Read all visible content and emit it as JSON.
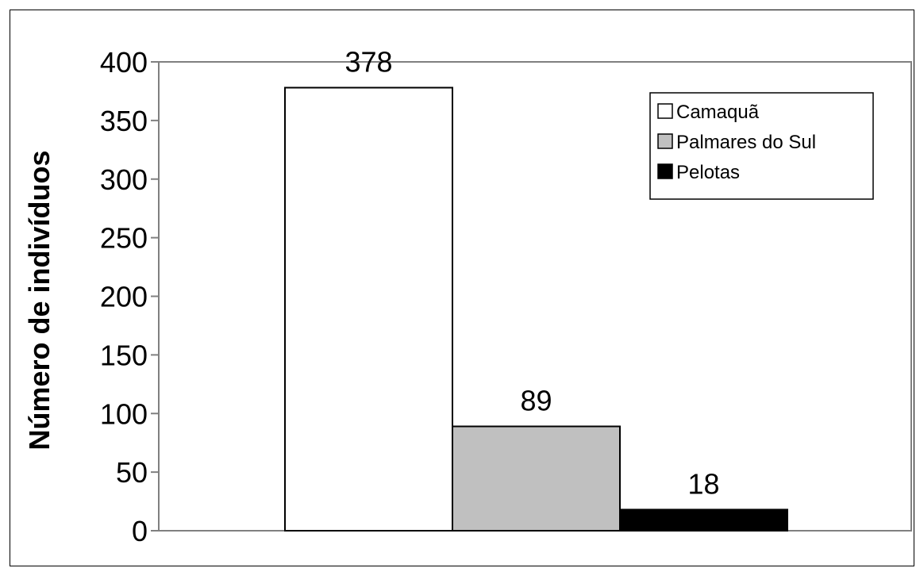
{
  "chart_data": {
    "type": "bar",
    "title": "",
    "xlabel": "",
    "ylabel": "Número de indivíduos",
    "ylim": [
      0,
      400
    ],
    "yticks": [
      0,
      50,
      100,
      150,
      200,
      250,
      300,
      350,
      400
    ],
    "grid": false,
    "legend_position": "top-right",
    "series": [
      {
        "name": "Camaquã",
        "value": 378,
        "color": "#ffffff"
      },
      {
        "name": "Palmares do Sul",
        "value": 89,
        "color": "#c0c0c0"
      },
      {
        "name": "Pelotas",
        "value": 18,
        "color": "#000000"
      }
    ]
  }
}
